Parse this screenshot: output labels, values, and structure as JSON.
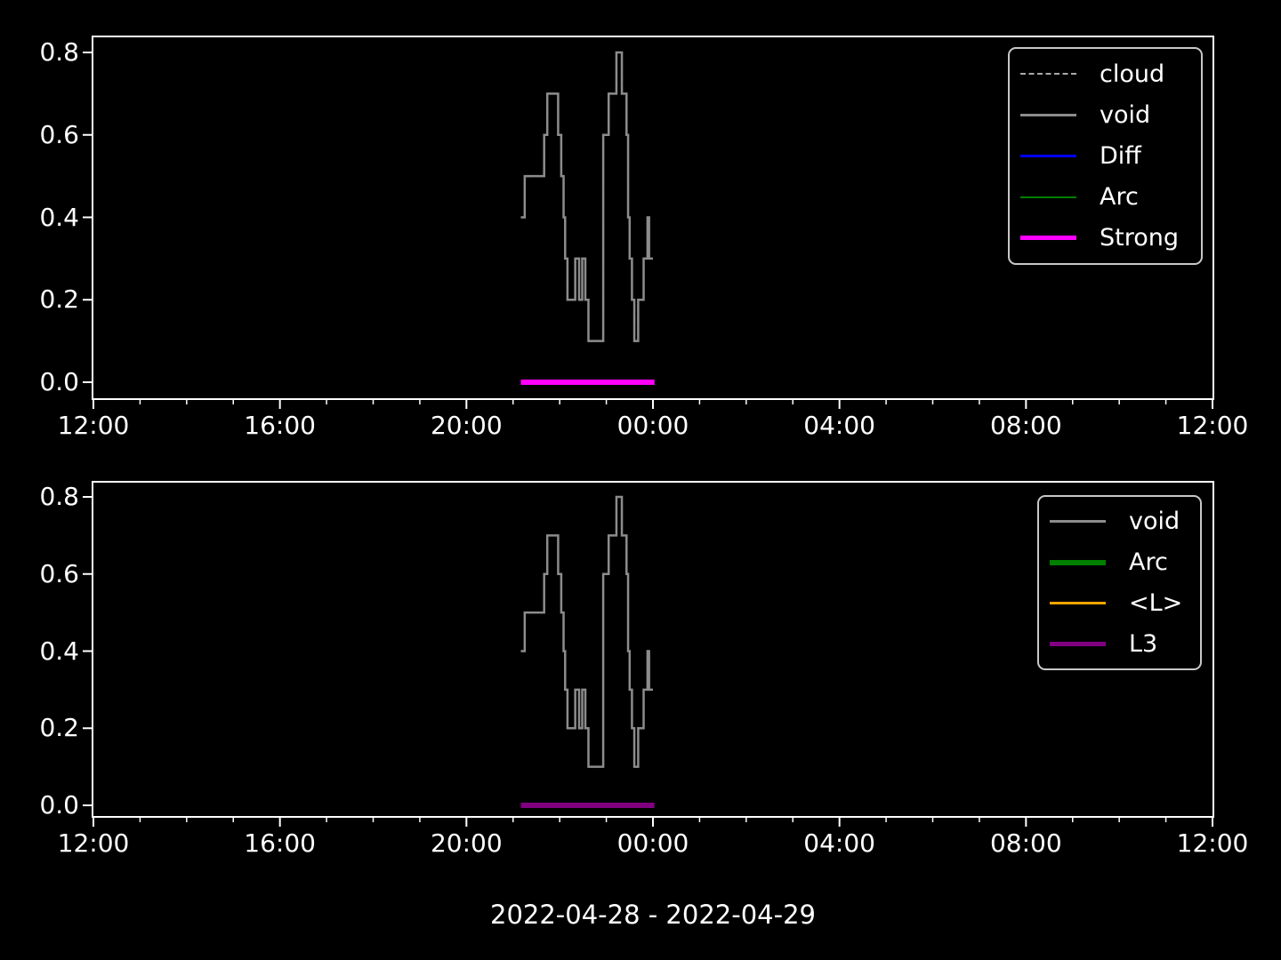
{
  "figure": {
    "background_color": "#000000",
    "text_color": "#ffffff",
    "xlabel": "2022-04-28 - 2022-04-29"
  },
  "axis": {
    "x_tick_labels": [
      "12:00",
      "16:00",
      "20:00",
      "00:00",
      "04:00",
      "08:00",
      "12:00"
    ],
    "x_major_tick_minutes": [
      0,
      240,
      480,
      720,
      960,
      1200,
      1440
    ],
    "x_minor_tick_interval_minutes": 60,
    "x_range_minutes_from_noon": [
      0,
      1440
    ],
    "y_tick_labels": [
      "0.0",
      "0.2",
      "0.4",
      "0.6",
      "0.8"
    ],
    "y_tick_values": [
      0.0,
      0.2,
      0.4,
      0.6,
      0.8
    ],
    "ylim": [
      -0.04,
      0.84
    ],
    "grid": "off"
  },
  "chart_data": [
    {
      "type": "line",
      "subplot": "top",
      "x_unit": "minutes since 2022-04-28 12:00",
      "step_mode": "post",
      "series": [
        {
          "name": "cloud",
          "color": "#a9a9a9",
          "line_style": "dashed",
          "line_width": 2,
          "note": "coincides with void line (hidden underneath)",
          "points": [
            [
              550,
              0.4
            ],
            [
              555,
              0.5
            ],
            [
              580,
              0.6
            ],
            [
              584,
              0.7
            ],
            [
              598,
              0.6
            ],
            [
              602,
              0.5
            ],
            [
              605,
              0.4
            ],
            [
              607,
              0.3
            ],
            [
              610,
              0.2
            ],
            [
              620,
              0.3
            ],
            [
              625,
              0.2
            ],
            [
              629,
              0.3
            ],
            [
              633,
              0.2
            ],
            [
              637,
              0.1
            ],
            [
              656,
              0.6
            ],
            [
              663,
              0.7
            ],
            [
              673,
              0.8
            ],
            [
              680,
              0.7
            ],
            [
              686,
              0.6
            ],
            [
              688,
              0.4
            ],
            [
              690,
              0.3
            ],
            [
              693,
              0.2
            ],
            [
              696,
              0.1
            ],
            [
              701,
              0.2
            ],
            [
              708,
              0.3
            ],
            [
              713,
              0.4
            ],
            [
              715,
              0.3
            ],
            [
              720,
              0.3
            ]
          ]
        },
        {
          "name": "void",
          "color": "#8c8c8c",
          "line_style": "solid",
          "line_width": 2.5,
          "start_time": "21:10",
          "end_time": "00:00",
          "points": [
            [
              550,
              0.4
            ],
            [
              555,
              0.5
            ],
            [
              580,
              0.6
            ],
            [
              584,
              0.7
            ],
            [
              598,
              0.6
            ],
            [
              602,
              0.5
            ],
            [
              605,
              0.4
            ],
            [
              607,
              0.3
            ],
            [
              610,
              0.2
            ],
            [
              620,
              0.3
            ],
            [
              625,
              0.2
            ],
            [
              629,
              0.3
            ],
            [
              633,
              0.2
            ],
            [
              637,
              0.1
            ],
            [
              656,
              0.6
            ],
            [
              663,
              0.7
            ],
            [
              673,
              0.8
            ],
            [
              680,
              0.7
            ],
            [
              686,
              0.6
            ],
            [
              688,
              0.4
            ],
            [
              690,
              0.3
            ],
            [
              693,
              0.2
            ],
            [
              696,
              0.1
            ],
            [
              701,
              0.2
            ],
            [
              708,
              0.3
            ],
            [
              713,
              0.4
            ],
            [
              715,
              0.3
            ],
            [
              720,
              0.3
            ]
          ]
        },
        {
          "name": "Diff",
          "color": "#0000ff",
          "line_style": "solid",
          "line_width": 2.5,
          "points": []
        },
        {
          "name": "Arc",
          "color": "#008000",
          "line_style": "solid",
          "line_width": 2,
          "points": []
        },
        {
          "name": "Strong",
          "color": "#ff00ff",
          "line_style": "solid",
          "line_width": 6,
          "start_time": "21:10",
          "end_time": "00:02",
          "points": [
            [
              550,
              0.0
            ],
            [
              722,
              0.0
            ]
          ]
        }
      ],
      "legend": {
        "position": "upper right",
        "entries": [
          {
            "label": "cloud",
            "color": "#a9a9a9",
            "line_style": "dashed",
            "line_width": 2
          },
          {
            "label": "void",
            "color": "#8c8c8c",
            "line_style": "solid",
            "line_width": 3
          },
          {
            "label": "Diff",
            "color": "#0000ff",
            "line_style": "solid",
            "line_width": 3
          },
          {
            "label": "Arc",
            "color": "#008000",
            "line_style": "solid",
            "line_width": 2
          },
          {
            "label": "Strong",
            "color": "#ff00ff",
            "line_style": "solid",
            "line_width": 5
          }
        ]
      }
    },
    {
      "type": "line",
      "subplot": "bottom",
      "x_unit": "minutes since 2022-04-28 12:00",
      "step_mode": "post",
      "series": [
        {
          "name": "void",
          "color": "#8c8c8c",
          "line_style": "solid",
          "line_width": 2.5,
          "start_time": "21:10",
          "end_time": "00:00",
          "points": [
            [
              550,
              0.4
            ],
            [
              555,
              0.5
            ],
            [
              580,
              0.6
            ],
            [
              584,
              0.7
            ],
            [
              598,
              0.6
            ],
            [
              602,
              0.5
            ],
            [
              605,
              0.4
            ],
            [
              607,
              0.3
            ],
            [
              610,
              0.2
            ],
            [
              620,
              0.3
            ],
            [
              625,
              0.2
            ],
            [
              629,
              0.3
            ],
            [
              633,
              0.2
            ],
            [
              637,
              0.1
            ],
            [
              656,
              0.6
            ],
            [
              663,
              0.7
            ],
            [
              673,
              0.8
            ],
            [
              680,
              0.7
            ],
            [
              686,
              0.6
            ],
            [
              688,
              0.4
            ],
            [
              690,
              0.3
            ],
            [
              693,
              0.2
            ],
            [
              696,
              0.1
            ],
            [
              701,
              0.2
            ],
            [
              708,
              0.3
            ],
            [
              713,
              0.4
            ],
            [
              715,
              0.3
            ],
            [
              720,
              0.3
            ]
          ]
        },
        {
          "name": "Arc",
          "color": "#008000",
          "line_style": "solid",
          "line_width": 6,
          "points": []
        },
        {
          "name": "<L>",
          "color": "#ffa500",
          "line_style": "solid",
          "line_width": 3,
          "points": []
        },
        {
          "name": "L3",
          "color": "#800080",
          "line_style": "solid",
          "line_width": 6,
          "start_time": "21:10",
          "end_time": "00:02",
          "points": [
            [
              550,
              0.0
            ],
            [
              722,
              0.0
            ]
          ]
        }
      ],
      "legend": {
        "position": "upper right",
        "entries": [
          {
            "label": "void",
            "color": "#8c8c8c",
            "line_style": "solid",
            "line_width": 3
          },
          {
            "label": "Arc",
            "color": "#008000",
            "line_style": "solid",
            "line_width": 6
          },
          {
            "label": "<L>",
            "color": "#ffa500",
            "line_style": "solid",
            "line_width": 3
          },
          {
            "label": "L3",
            "color": "#800080",
            "line_style": "solid",
            "line_width": 5
          }
        ]
      }
    }
  ]
}
